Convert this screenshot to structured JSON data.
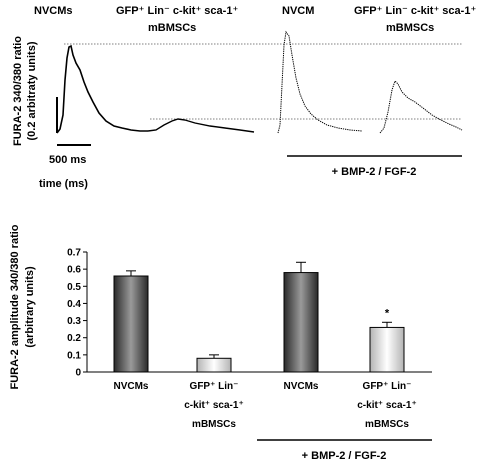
{
  "traces": {
    "labels": {
      "nvcms": "NVCMs",
      "gfp_line1": "GFP⁺ Lin⁻ c-kit⁺ sca-1⁺",
      "gfp_line2": "mBMSCs",
      "nvcm": "NVCM",
      "gfp2_line1": "GFP⁺ Lin⁻ c-kit⁺ sca-1⁺",
      "gfp2_line2": "mBMSCs"
    },
    "ylabel_line1": "FURA-2 340/380 ratio",
    "ylabel_line2": "(0.2 arbitraty units)",
    "scalebar_label": "500 ms",
    "time_label": "time (ms)",
    "treatment_label": "+ BMP-2 / FGF-2"
  },
  "chart_data": {
    "type": "bar",
    "categories": [
      [
        "NVCMs"
      ],
      [
        "GFP⁺ Lin⁻",
        "c-kit⁺ sca-1⁺",
        "mBMSCs"
      ],
      [
        "NVCMs"
      ],
      [
        "GFP⁺ Lin⁻",
        "c-kit⁺ sca-1⁺",
        "mBMSCs"
      ]
    ],
    "values": [
      0.56,
      0.08,
      0.58,
      0.26
    ],
    "errors": [
      0.03,
      0.02,
      0.06,
      0.03
    ],
    "significance": [
      "",
      "",
      "",
      "*"
    ],
    "bar_colors": [
      "dark",
      "light",
      "dark",
      "light"
    ],
    "ylabel_line1": "FURA-2 amplitude 340/380 ratio",
    "ylabel_line2": "(arbitrary units)",
    "ylim": [
      0,
      0.7
    ],
    "yticks": [
      "0",
      "0.1",
      "0.2",
      "0.3",
      "0.4",
      "0.5",
      "0.6",
      "0.7"
    ],
    "treatment_label": "+ BMP-2 / FGF-2",
    "grid": false
  }
}
